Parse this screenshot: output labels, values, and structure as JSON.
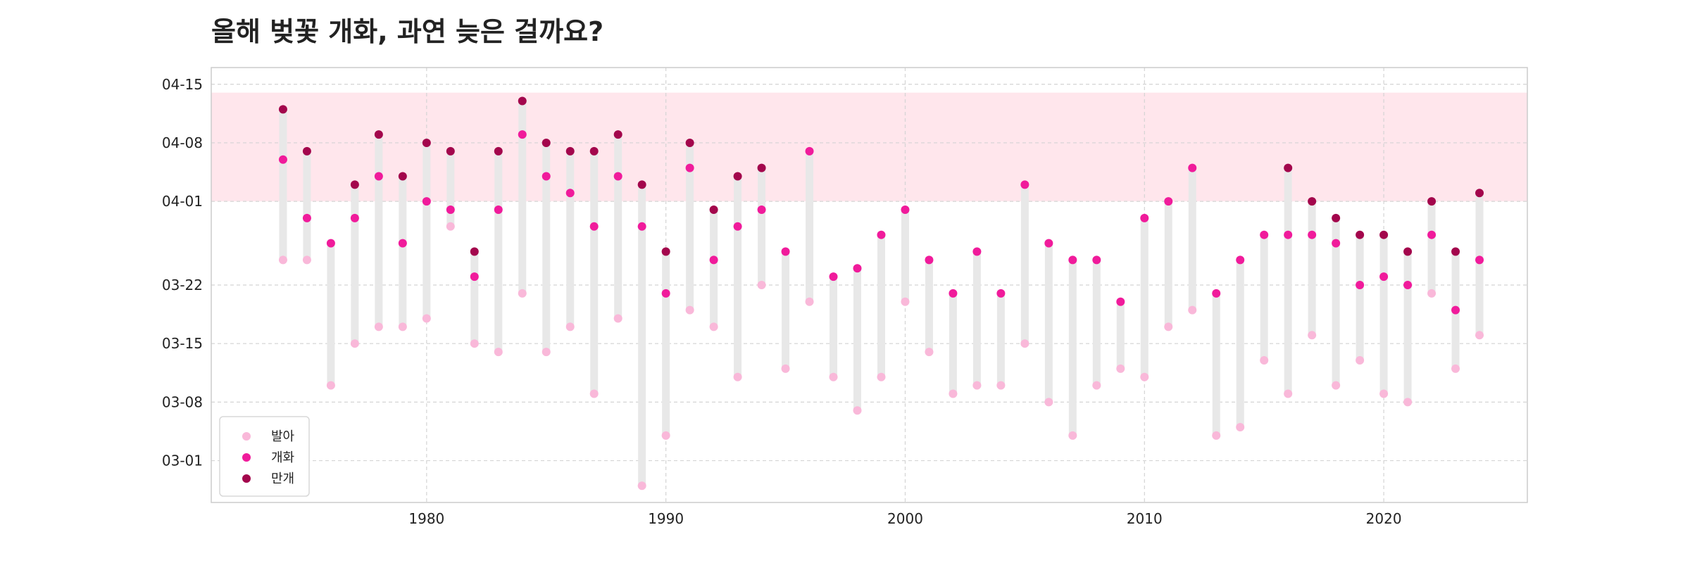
{
  "chart_data": {
    "type": "scatter",
    "title": "올해 벚꽃 개화, 과연 늦은 걸까요?",
    "xlabel": "",
    "ylabel": "",
    "x_ticks": [
      "1980",
      "1990",
      "2000",
      "2010",
      "2020"
    ],
    "y_ticks": [
      "03-01",
      "03-08",
      "03-15",
      "03-22",
      "04-01",
      "04-08",
      "04-15"
    ],
    "xlim": [
      1971,
      2026
    ],
    "ylim": [
      "02-24",
      "04-17"
    ],
    "highlight_band": {
      "from": "04-01",
      "to": "04-14",
      "color": "#ffe6ec"
    },
    "grid": true,
    "legend_position": "lower-left",
    "colors": {
      "발아": "#f9b8d9",
      "개화": "#f01b9b",
      "만개": "#a3064c",
      "range_bar": "#e8e8e8"
    },
    "x": [
      1974,
      1975,
      1976,
      1977,
      1978,
      1979,
      1980,
      1981,
      1982,
      1983,
      1984,
      1985,
      1986,
      1987,
      1988,
      1989,
      1990,
      1991,
      1992,
      1993,
      1994,
      1995,
      1996,
      1997,
      1998,
      1999,
      2000,
      2001,
      2002,
      2003,
      2004,
      2005,
      2006,
      2007,
      2008,
      2009,
      2010,
      2011,
      2012,
      2013,
      2014,
      2015,
      2016,
      2017,
      2018,
      2019,
      2020,
      2021,
      2022,
      2023,
      2024
    ],
    "series": [
      {
        "name": "발아",
        "values": [
          "03-25",
          "03-25",
          "03-10",
          "03-15",
          "03-17",
          "03-17",
          "03-18",
          "03-29",
          "03-15",
          "03-14",
          "03-21",
          "03-14",
          "03-17",
          "03-09",
          "03-18",
          "02-26",
          "03-04",
          "03-19",
          "03-17",
          "03-11",
          "03-22",
          "03-12",
          "03-20",
          "03-11",
          "03-07",
          "03-11",
          "03-20",
          "03-14",
          "03-09",
          "03-10",
          "03-10",
          "03-15",
          "03-08",
          "03-04",
          "03-10",
          "03-12",
          "03-11",
          "03-17",
          "03-19",
          "03-04",
          "03-05",
          "03-13",
          "03-09",
          "03-16",
          "03-10",
          "03-13",
          "03-09",
          "03-08",
          "03-21",
          "03-12",
          "03-16"
        ]
      },
      {
        "name": "개화",
        "values": [
          "04-06",
          "03-30",
          "03-27",
          "03-30",
          "04-04",
          "03-27",
          "04-01",
          "03-31",
          "03-23",
          "03-31",
          "04-09",
          "04-04",
          "04-02",
          "03-29",
          "04-04",
          "03-29",
          "03-21",
          "04-05",
          "03-25",
          "03-29",
          "03-31",
          "03-26",
          "04-07",
          "03-23",
          "03-24",
          "03-28",
          "03-31",
          "03-25",
          "03-21",
          "03-26",
          "03-21",
          "04-03",
          "03-27",
          "03-25",
          "03-25",
          "03-20",
          "03-30",
          "04-01",
          "04-05",
          "03-21",
          "03-25",
          "03-28",
          "03-28",
          "03-28",
          "03-27",
          "03-22",
          "03-23",
          "03-22",
          "03-28",
          "03-19",
          "03-25"
        ]
      },
      {
        "name": "만개",
        "values": [
          "04-12",
          "04-07",
          "",
          "04-03",
          "04-09",
          "04-04",
          "04-08",
          "04-07",
          "03-26",
          "04-07",
          "04-13",
          "04-08",
          "04-07",
          "04-07",
          "04-09",
          "04-03",
          "03-26",
          "04-08",
          "03-31",
          "04-04",
          "04-05",
          "",
          "",
          "",
          "",
          "",
          "",
          "",
          "",
          "",
          "",
          "",
          "",
          "",
          "",
          "",
          "",
          "",
          "",
          "",
          "",
          "",
          "04-05",
          "04-01",
          "03-30",
          "03-28",
          "03-28",
          "03-26",
          "04-01",
          "03-26",
          "04-02"
        ]
      }
    ]
  }
}
